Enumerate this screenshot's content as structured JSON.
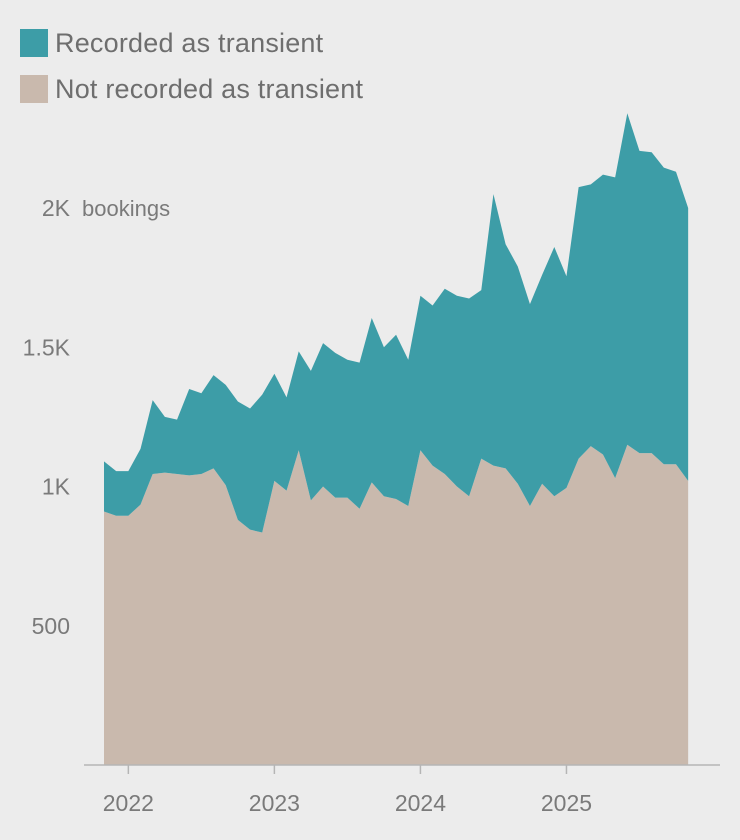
{
  "legend": [
    {
      "label": "Recorded as transient",
      "color": "#3d9da7"
    },
    {
      "label": "Not recorded as transient",
      "color": "#c9b9ad"
    }
  ],
  "chart_data": {
    "type": "area",
    "stacked": true,
    "x_start": "2021-11",
    "x_interval": "month",
    "x_ticks": [
      {
        "date": "2022-01",
        "label": "2022"
      },
      {
        "date": "2023-01",
        "label": "2023"
      },
      {
        "date": "2024-01",
        "label": "2024"
      },
      {
        "date": "2025-01",
        "label": "2025"
      }
    ],
    "ylim": [
      0,
      2300
    ],
    "y_ticks": [
      {
        "value": 500,
        "label": "500"
      },
      {
        "value": 1000,
        "label": "1K"
      },
      {
        "value": 1500,
        "label": "1.5K"
      },
      {
        "value": 2000,
        "label": "2K"
      }
    ],
    "y_unit": "bookings",
    "grid": false,
    "legend_position": "top-left",
    "series": [
      {
        "name": "Not recorded as transient",
        "color": "#c9b9ad",
        "values": [
          910,
          895,
          895,
          935,
          1045,
          1050,
          1045,
          1040,
          1045,
          1065,
          1005,
          880,
          845,
          835,
          1020,
          985,
          1130,
          950,
          1000,
          960,
          960,
          920,
          1015,
          965,
          955,
          930,
          1130,
          1075,
          1045,
          1000,
          965,
          1100,
          1075,
          1065,
          1010,
          930,
          1010,
          965,
          995,
          1100,
          1145,
          1115,
          1030,
          1150,
          1120,
          1120,
          1080,
          1080,
          1020
        ]
      },
      {
        "name": "Recorded as transient",
        "color": "#3d9da7",
        "values": [
          180,
          160,
          160,
          200,
          265,
          200,
          195,
          310,
          290,
          335,
          360,
          425,
          435,
          495,
          385,
          335,
          355,
          465,
          515,
          520,
          495,
          525,
          590,
          535,
          590,
          525,
          555,
          575,
          665,
          685,
          710,
          605,
          975,
          805,
          780,
          725,
          750,
          895,
          760,
          975,
          940,
          1005,
          1080,
          1190,
          1085,
          1080,
          1065,
          1050,
          980
        ]
      }
    ]
  }
}
